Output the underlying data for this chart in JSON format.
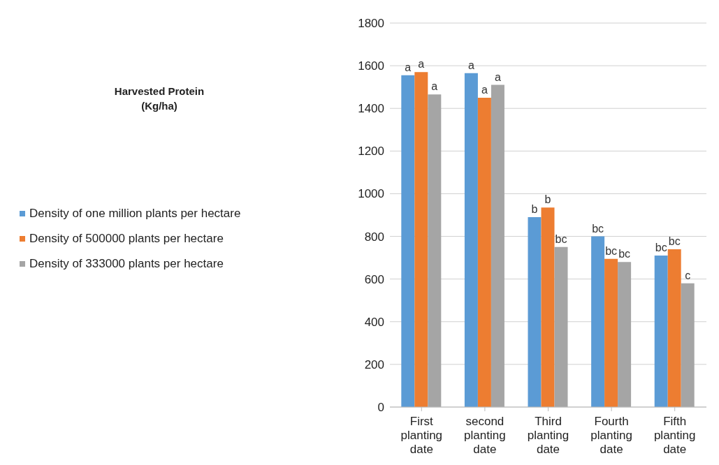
{
  "chart_data": {
    "type": "bar",
    "title": "Harvested Protein\n(Kg/ha)",
    "categories": [
      "First planting date",
      "second planting date",
      "Third planting date",
      "Fourth planting date",
      "Fifth planting date"
    ],
    "series": [
      {
        "name": "Density of one million plants per hectare",
        "color": "#5b9bd5",
        "values": [
          1555,
          1565,
          890,
          800,
          710
        ],
        "value_labels": [
          "a",
          "a",
          "b",
          "bc",
          "bc"
        ]
      },
      {
        "name": "Density of 500000 plants per hectare",
        "color": "#ed7d31",
        "values": [
          1570,
          1450,
          935,
          695,
          740
        ],
        "value_labels": [
          "a",
          "a",
          "b",
          "bc",
          "bc"
        ]
      },
      {
        "name": "Density of 333000 plants per hectare",
        "color": "#a5a5a5",
        "values": [
          1465,
          1510,
          750,
          680,
          580
        ],
        "value_labels": [
          "a",
          "a",
          "bc",
          "bc",
          "c"
        ]
      }
    ],
    "ylim": [
      0,
      1800
    ],
    "yticks": [
      0,
      200,
      400,
      600,
      800,
      1000,
      1200,
      1400,
      1600,
      1800
    ],
    "grid": "y",
    "legend": "left"
  }
}
